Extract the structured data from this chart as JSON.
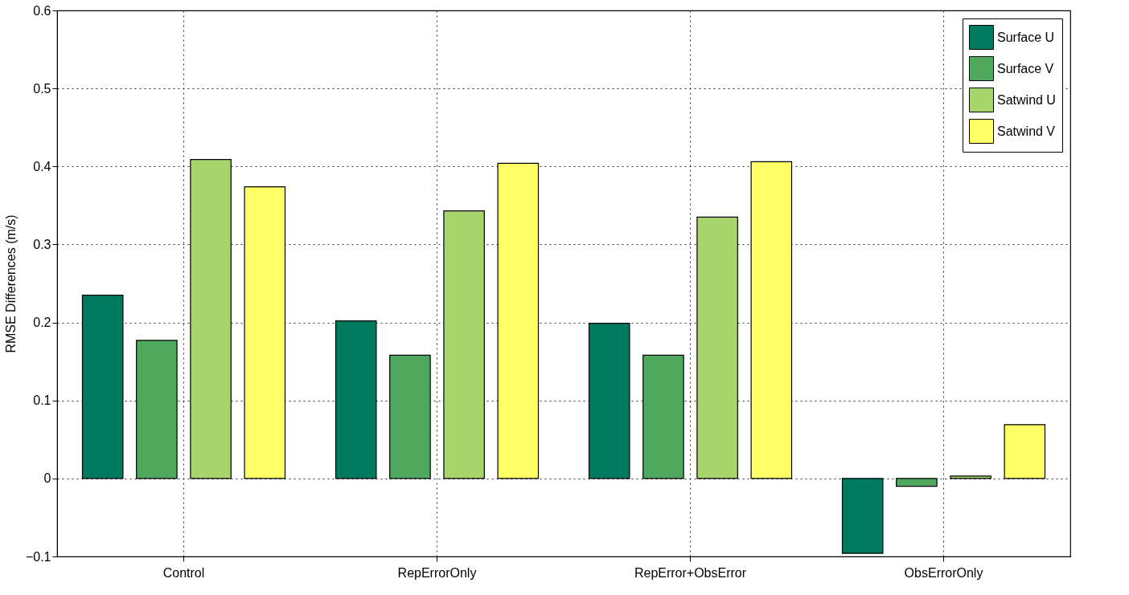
{
  "chart_data": {
    "type": "bar",
    "ylabel": "RMSE Differences (m/s)",
    "categories": [
      "Control",
      "RepErrorOnly",
      "RepError+ObsError",
      "ObsErrorOnly"
    ],
    "series": [
      {
        "name": "Surface U",
        "color": "#007a5e",
        "values": [
          0.235,
          0.202,
          0.199,
          -0.096
        ]
      },
      {
        "name": "Surface V",
        "color": "#4ea85e",
        "values": [
          0.177,
          0.158,
          0.158,
          -0.01
        ]
      },
      {
        "name": "Satwind U",
        "color": "#a8d46c",
        "values": [
          0.409,
          0.343,
          0.335,
          0.003
        ]
      },
      {
        "name": "Satwind V",
        "color": "#ffff66",
        "values": [
          0.374,
          0.404,
          0.406,
          0.069
        ]
      }
    ],
    "ylim": [
      -0.1,
      0.6
    ],
    "yticks": [
      -0.1,
      0,
      0.1,
      0.2,
      0.3,
      0.4,
      0.5,
      0.6
    ],
    "grid": true,
    "legend": "top right"
  }
}
